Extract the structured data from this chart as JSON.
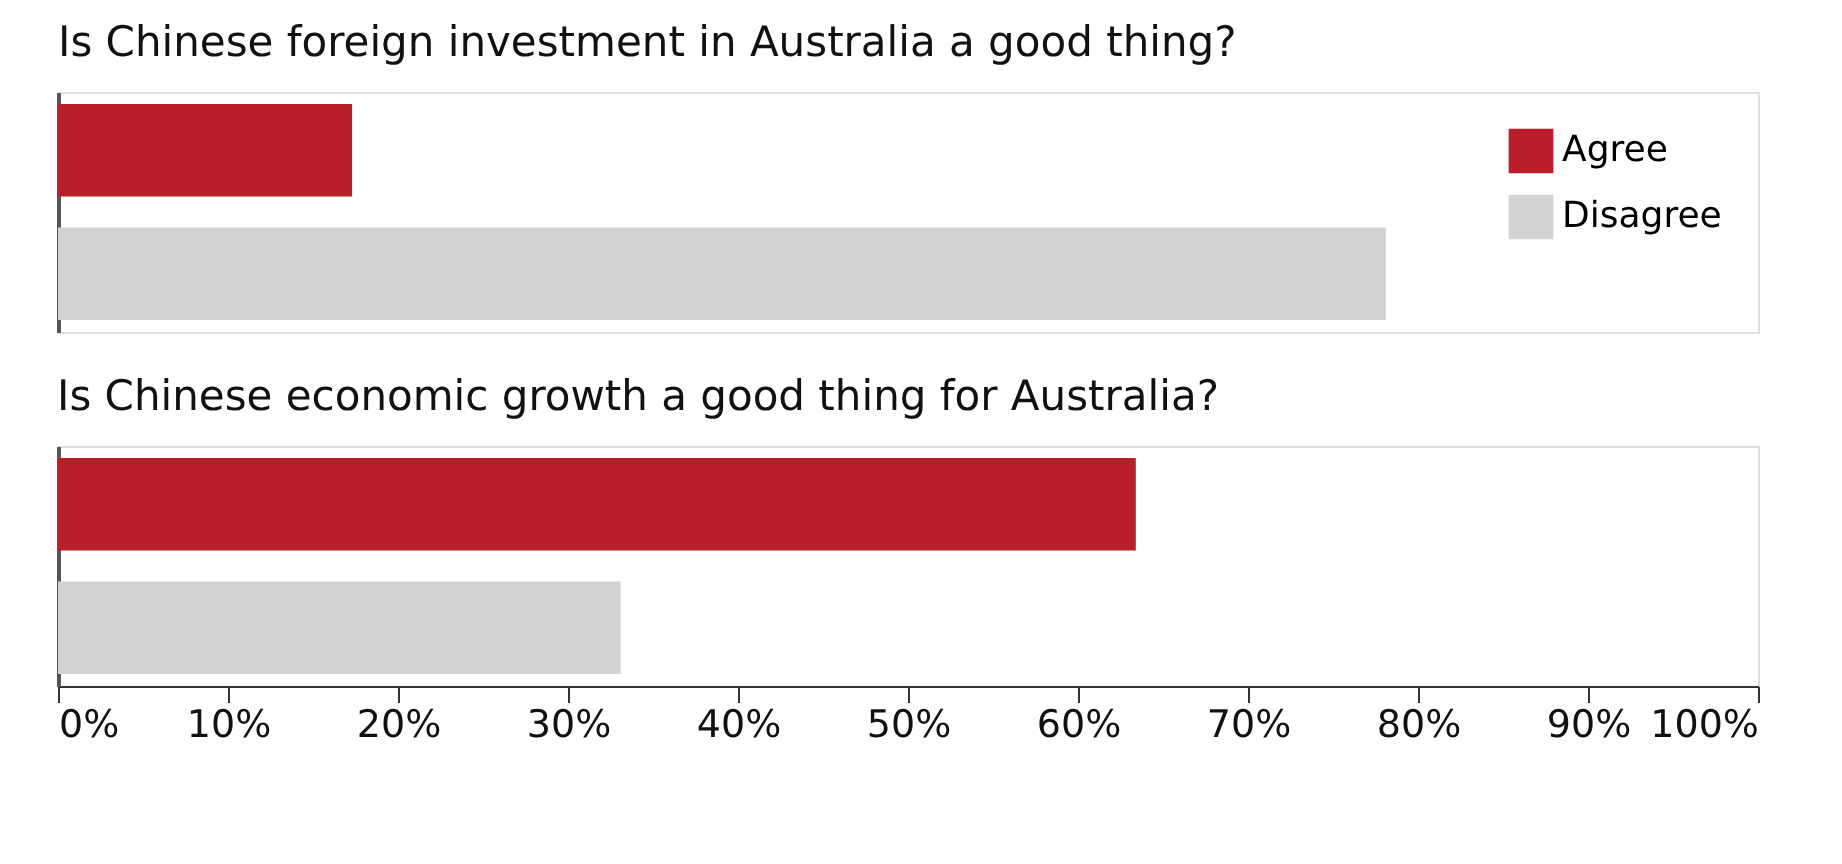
{
  "chart_data": [
    {
      "type": "bar",
      "orientation": "horizontal",
      "title": "Is Chinese foreign investment in Australia a good thing?",
      "categories": [
        null
      ],
      "series": [
        {
          "name": "Agree",
          "color": "#b81f2a",
          "values": [
            17.3
          ]
        },
        {
          "name": "Disagree",
          "color": "#d3d3d3",
          "values": [
            78.1
          ]
        }
      ],
      "xlim": [
        0,
        100
      ],
      "tick_labels": false,
      "legend": "top right",
      "grid": false
    },
    {
      "type": "bar",
      "orientation": "horizontal",
      "title": "Is Chinese economic growth a good thing for Australia?",
      "categories": [
        null
      ],
      "series": [
        {
          "name": "Agree",
          "color": "#b81f2a",
          "values": [
            63.4
          ]
        },
        {
          "name": "Disagree",
          "color": "#d3d3d3",
          "values": [
            33.1
          ]
        }
      ],
      "xlim": [
        0,
        100
      ],
      "xticks": [
        {
          "value": 0,
          "label": "0%"
        },
        {
          "value": 10,
          "label": "10%"
        },
        {
          "value": 20,
          "label": "20%"
        },
        {
          "value": 30,
          "label": "30%"
        },
        {
          "value": 40,
          "label": "40%"
        },
        {
          "value": 50,
          "label": "50%"
        },
        {
          "value": 60,
          "label": "60%"
        },
        {
          "value": 70,
          "label": "70%"
        },
        {
          "value": 80,
          "label": "80%"
        },
        {
          "value": 90,
          "label": "90%"
        },
        {
          "value": 100,
          "label": "100%"
        }
      ],
      "grid": false
    }
  ]
}
